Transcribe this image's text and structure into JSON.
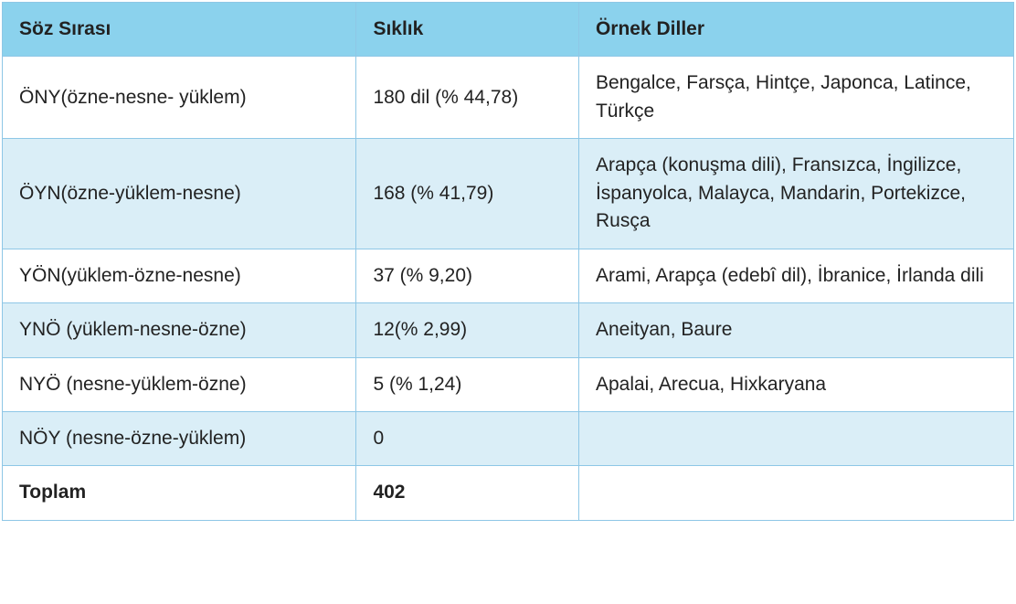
{
  "table": {
    "type": "table",
    "background_color": "#ffffff",
    "border_color": "#8ec7e6",
    "header_bg": "#8bd2ed",
    "alt_row_bg": "#daeef7",
    "white_row_bg": "#ffffff",
    "text_color": "#222222",
    "font_size_pt": 16,
    "font_family": "Segoe UI, Helvetica Neue, Arial, sans-serif",
    "col_widths_pct": [
      35,
      22,
      43
    ],
    "columns": [
      "Söz Sırası",
      "Sıklık",
      "Örnek Diller"
    ],
    "rows": [
      {
        "cells": [
          "ÖNY(özne-nesne- yüklem)",
          "180 dil (% 44,78)",
          "Bengalce, Farsça, Hintçe, Japonca, Latince, Türkçe"
        ],
        "alt": false,
        "bold": false
      },
      {
        "cells": [
          "ÖYN(özne-yüklem-nesne)",
          "168 (% 41,79)",
          "Arapça (konuşma dili), Fransızca, İngilizce, İspanyolca, Malayca, Mandarin, Portekizce, Rusça"
        ],
        "alt": true,
        "bold": false
      },
      {
        "cells": [
          "YÖN(yüklem-özne-nesne)",
          "37 (% 9,20)",
          "Arami, Arapça (edebî dil), İbranice, İrlanda dili"
        ],
        "alt": false,
        "bold": false
      },
      {
        "cells": [
          "YNÖ (yüklem-nesne-özne)",
          "12(% 2,99)",
          "Aneityan, Baure"
        ],
        "alt": true,
        "bold": false
      },
      {
        "cells": [
          "NYÖ (nesne-yüklem-özne)",
          "5 (% 1,24)",
          "Apalai, Arecua, Hixkaryana"
        ],
        "alt": false,
        "bold": false
      },
      {
        "cells": [
          "NÖY (nesne-özne-yüklem)",
          "0",
          ""
        ],
        "alt": true,
        "bold": false
      },
      {
        "cells": [
          "Toplam",
          "402",
          ""
        ],
        "alt": false,
        "bold": true
      }
    ]
  }
}
